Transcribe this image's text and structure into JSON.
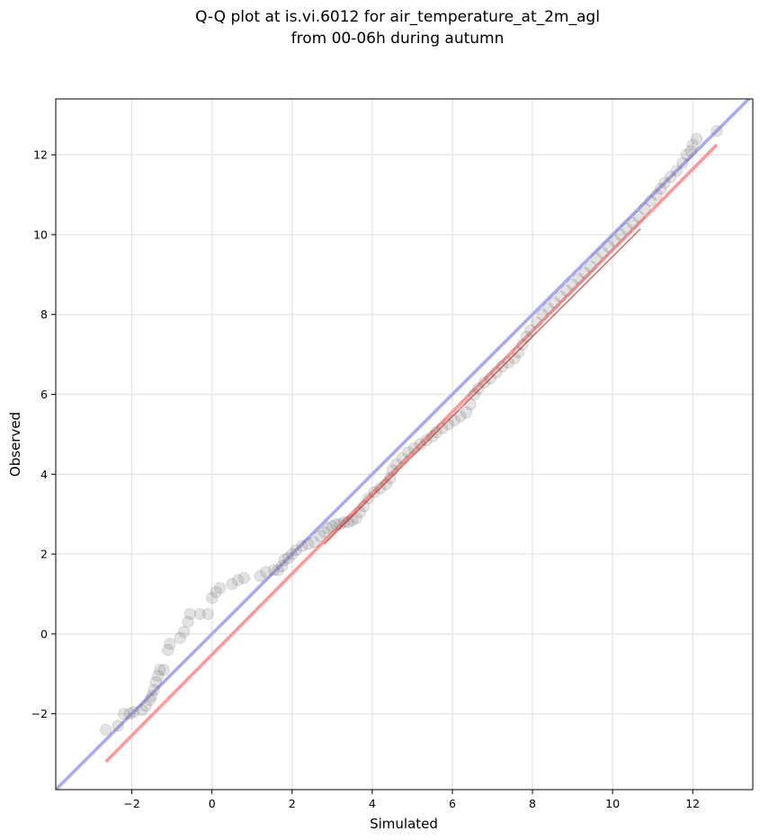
{
  "chart_data": {
    "type": "scatter",
    "title_lines": [
      "Q-Q plot at is.vi.6012 for air_temperature_at_2m_agl",
      "from 00-06h during autumn"
    ],
    "xlabel": "Simulated",
    "ylabel": "Observed",
    "xlim": [
      -3.9,
      13.5
    ],
    "ylim": [
      -3.9,
      13.4
    ],
    "xticks": [
      -2,
      0,
      2,
      4,
      6,
      8,
      10,
      12
    ],
    "yticks": [
      -2,
      0,
      2,
      4,
      6,
      8,
      10,
      12
    ],
    "grid": true,
    "colors": {
      "points": "#7f7f7f",
      "points_edge": "#000000",
      "identity_line": "#aaaaee",
      "fit_line": "#ff9999",
      "fit_overlay": "#b40000",
      "grid": "#e6e6e6"
    },
    "reference_lines": [
      {
        "name": "identity",
        "x": [
          -3.9,
          13.5
        ],
        "y": [
          -3.9,
          13.5
        ]
      },
      {
        "name": "fit",
        "x": [
          -2.65,
          12.6
        ],
        "y": [
          -3.2,
          12.25
        ]
      }
    ],
    "points": [
      [
        -2.65,
        -2.4
      ],
      [
        -2.35,
        -2.3
      ],
      [
        -2.2,
        -2.0
      ],
      [
        -2.05,
        -2.0
      ],
      [
        -1.95,
        -1.95
      ],
      [
        -1.75,
        -1.9
      ],
      [
        -1.65,
        -1.8
      ],
      [
        -1.55,
        -1.65
      ],
      [
        -1.5,
        -1.55
      ],
      [
        -1.45,
        -1.4
      ],
      [
        -1.4,
        -1.2
      ],
      [
        -1.35,
        -1.05
      ],
      [
        -1.3,
        -0.9
      ],
      [
        -1.2,
        -0.9
      ],
      [
        -1.1,
        -0.4
      ],
      [
        -1.05,
        -0.25
      ],
      [
        -0.8,
        -0.1
      ],
      [
        -0.7,
        0.05
      ],
      [
        -0.6,
        0.3
      ],
      [
        -0.55,
        0.5
      ],
      [
        -0.3,
        0.5
      ],
      [
        -0.1,
        0.5
      ],
      [
        0.0,
        0.9
      ],
      [
        0.1,
        1.05
      ],
      [
        0.2,
        1.15
      ],
      [
        0.5,
        1.25
      ],
      [
        0.65,
        1.35
      ],
      [
        0.8,
        1.4
      ],
      [
        1.2,
        1.45
      ],
      [
        1.35,
        1.55
      ],
      [
        1.55,
        1.6
      ],
      [
        1.65,
        1.6
      ],
      [
        1.75,
        1.7
      ],
      [
        1.8,
        1.85
      ],
      [
        1.9,
        1.9
      ],
      [
        2.0,
        2.0
      ],
      [
        2.1,
        2.1
      ],
      [
        2.25,
        2.2
      ],
      [
        2.4,
        2.25
      ],
      [
        2.55,
        2.3
      ],
      [
        2.7,
        2.45
      ],
      [
        2.8,
        2.55
      ],
      [
        2.9,
        2.65
      ],
      [
        3.0,
        2.7
      ],
      [
        3.1,
        2.75
      ],
      [
        3.2,
        2.75
      ],
      [
        3.3,
        2.8
      ],
      [
        3.4,
        2.8
      ],
      [
        3.5,
        2.85
      ],
      [
        3.6,
        2.9
      ],
      [
        3.7,
        3.05
      ],
      [
        3.8,
        3.2
      ],
      [
        3.9,
        3.4
      ],
      [
        4.05,
        3.55
      ],
      [
        4.2,
        3.65
      ],
      [
        4.35,
        3.75
      ],
      [
        4.45,
        3.9
      ],
      [
        4.5,
        4.1
      ],
      [
        4.6,
        4.25
      ],
      [
        4.75,
        4.4
      ],
      [
        4.9,
        4.55
      ],
      [
        5.05,
        4.65
      ],
      [
        5.2,
        4.75
      ],
      [
        5.35,
        4.85
      ],
      [
        5.5,
        4.95
      ],
      [
        5.6,
        5.05
      ],
      [
        5.75,
        5.15
      ],
      [
        5.9,
        5.25
      ],
      [
        6.05,
        5.35
      ],
      [
        6.2,
        5.45
      ],
      [
        6.35,
        5.55
      ],
      [
        6.45,
        5.75
      ],
      [
        6.55,
        6.0
      ],
      [
        6.65,
        6.15
      ],
      [
        6.8,
        6.3
      ],
      [
        6.95,
        6.4
      ],
      [
        7.1,
        6.55
      ],
      [
        7.25,
        6.7
      ],
      [
        7.4,
        6.8
      ],
      [
        7.55,
        6.9
      ],
      [
        7.65,
        7.05
      ],
      [
        7.75,
        7.25
      ],
      [
        7.85,
        7.45
      ],
      [
        7.95,
        7.6
      ],
      [
        8.1,
        7.8
      ],
      [
        8.25,
        8.0
      ],
      [
        8.4,
        8.15
      ],
      [
        8.55,
        8.3
      ],
      [
        8.7,
        8.45
      ],
      [
        8.85,
        8.6
      ],
      [
        9.0,
        8.75
      ],
      [
        9.15,
        8.9
      ],
      [
        9.3,
        9.05
      ],
      [
        9.45,
        9.2
      ],
      [
        9.6,
        9.4
      ],
      [
        9.75,
        9.55
      ],
      [
        9.9,
        9.7
      ],
      [
        10.05,
        9.85
      ],
      [
        10.2,
        10.0
      ],
      [
        10.35,
        10.15
      ],
      [
        10.5,
        10.3
      ],
      [
        10.65,
        10.45
      ],
      [
        10.8,
        10.65
      ],
      [
        10.95,
        10.85
      ],
      [
        11.1,
        11.0
      ],
      [
        11.2,
        11.15
      ],
      [
        11.3,
        11.3
      ],
      [
        11.45,
        11.45
      ],
      [
        11.6,
        11.6
      ],
      [
        11.75,
        11.8
      ],
      [
        11.85,
        12.0
      ],
      [
        11.95,
        12.1
      ],
      [
        12.0,
        12.25
      ],
      [
        12.1,
        12.4
      ],
      [
        12.6,
        12.6
      ]
    ]
  }
}
